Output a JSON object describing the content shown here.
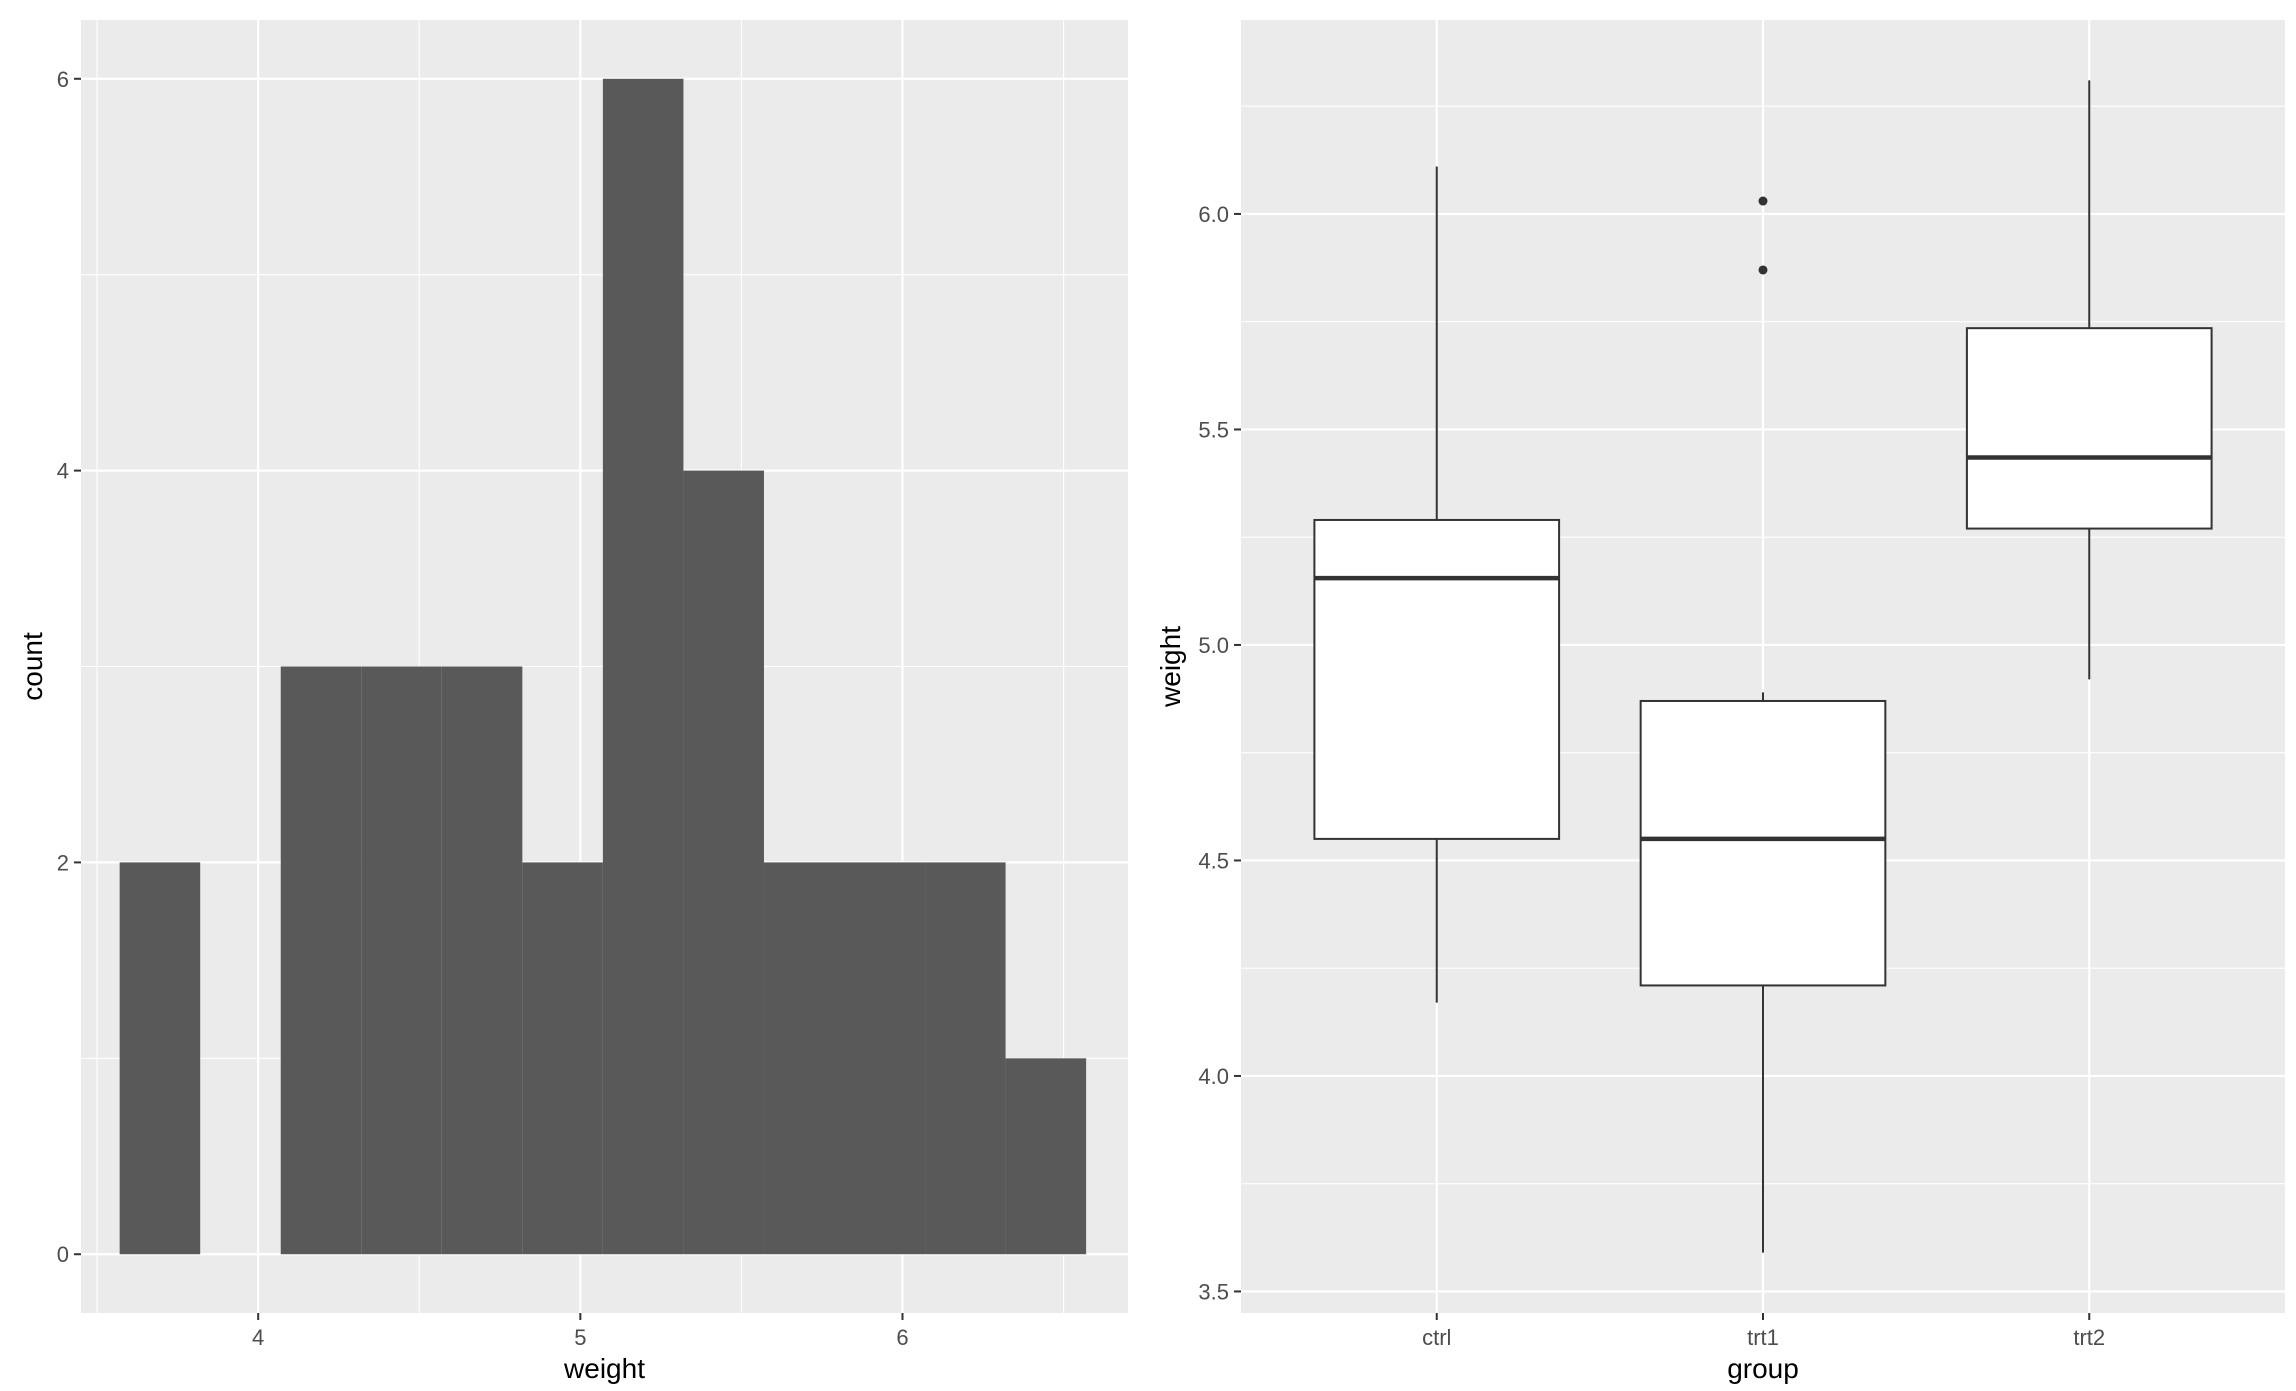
{
  "chart_data": [
    {
      "type": "histogram",
      "title": "",
      "xlabel": "weight",
      "ylabel": "count",
      "xlim": [
        3.45,
        6.7
      ],
      "ylim": [
        -0.3,
        6.3
      ],
      "x_ticks": [
        4,
        5,
        6
      ],
      "x_tick_labels": [
        "4",
        "5",
        "6"
      ],
      "y_ticks": [
        0,
        2,
        4,
        6
      ],
      "y_tick_labels": [
        "0",
        "2",
        "4",
        "6"
      ],
      "bins": [
        {
          "x0": 3.57,
          "x1": 3.82,
          "count": 2
        },
        {
          "x0": 3.82,
          "x1": 4.07,
          "count": 0
        },
        {
          "x0": 4.07,
          "x1": 4.32,
          "count": 3
        },
        {
          "x0": 4.32,
          "x1": 4.57,
          "count": 3
        },
        {
          "x0": 4.57,
          "x1": 4.82,
          "count": 3
        },
        {
          "x0": 4.82,
          "x1": 5.07,
          "count": 2
        },
        {
          "x0": 5.07,
          "x1": 5.32,
          "count": 6
        },
        {
          "x0": 5.32,
          "x1": 5.57,
          "count": 4
        },
        {
          "x0": 5.57,
          "x1": 5.82,
          "count": 2
        },
        {
          "x0": 5.82,
          "x1": 6.07,
          "count": 2
        },
        {
          "x0": 6.07,
          "x1": 6.32,
          "count": 2
        },
        {
          "x0": 6.32,
          "x1": 6.57,
          "count": 1
        }
      ],
      "colors": {
        "panel": "#EBEBEB",
        "grid": "#FFFFFF",
        "bar": "#595959"
      },
      "grid": true
    },
    {
      "type": "boxplot",
      "title": "",
      "xlabel": "group",
      "ylabel": "weight",
      "ylim": [
        3.45,
        6.45
      ],
      "categories": [
        "ctrl",
        "trt1",
        "trt2"
      ],
      "y_ticks": [
        3.5,
        4.0,
        4.5,
        5.0,
        5.5,
        6.0
      ],
      "y_tick_labels": [
        "3.5",
        "4.0",
        "4.5",
        "5.0",
        "5.5",
        "6.0"
      ],
      "boxes": [
        {
          "category": "ctrl",
          "lower_whisker": 4.17,
          "q1": 4.55,
          "median": 5.155,
          "q3": 5.29,
          "upper_whisker": 6.11,
          "outliers": []
        },
        {
          "category": "trt1",
          "lower_whisker": 3.59,
          "q1": 4.21,
          "median": 4.55,
          "q3": 4.87,
          "upper_whisker": 4.89,
          "outliers": [
            5.87,
            6.03
          ]
        },
        {
          "category": "trt2",
          "lower_whisker": 4.92,
          "q1": 5.27,
          "median": 5.435,
          "q3": 5.735,
          "upper_whisker": 6.31,
          "outliers": []
        }
      ],
      "colors": {
        "panel": "#EBEBEB",
        "grid": "#FFFFFF",
        "box_fill": "#FFFFFF",
        "box_stroke": "#333333",
        "outlier": "#333333"
      },
      "grid": true
    }
  ]
}
